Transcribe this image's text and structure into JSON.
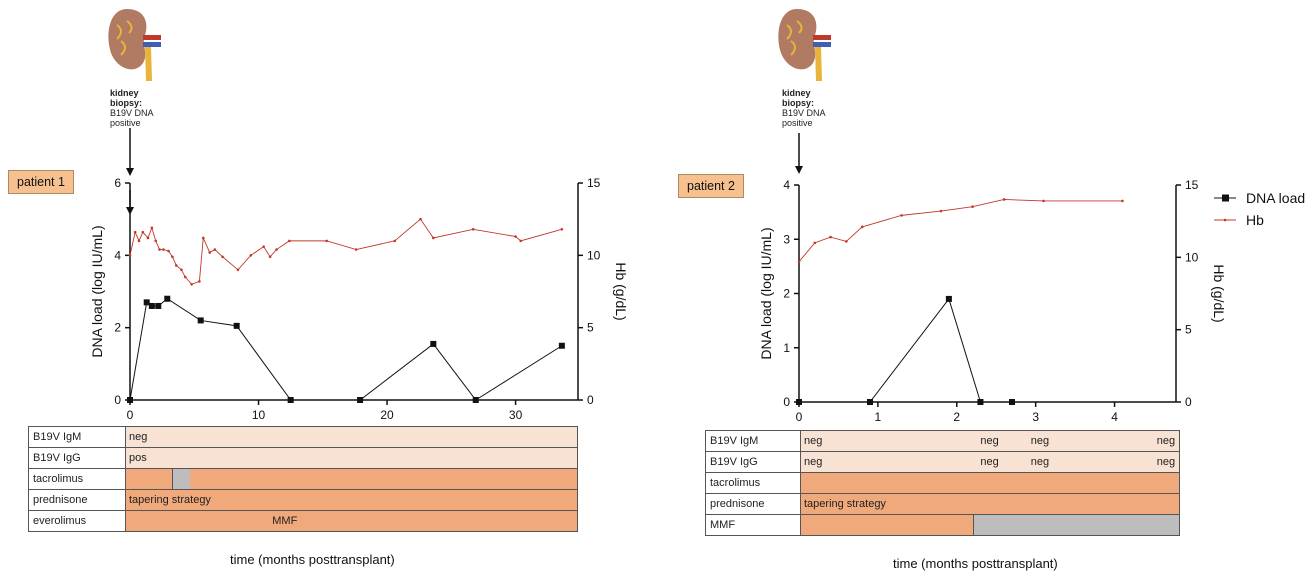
{
  "colors": {
    "dna": "#111111",
    "hb": "#c0392b",
    "light": "#f8e2d3",
    "orange": "#f0a97b",
    "gray": "#bdbdbd",
    "patient_bg": "#f6c08f"
  },
  "panels": [
    {
      "biopsy_bold": "kidney\nbiopsy:",
      "biopsy_text": "B19V DNA\npositive",
      "patient": "patient 1",
      "xtitle": "time (months posttransplant)",
      "rows": [
        {
          "label": "B19V IgM",
          "segments": [
            {
              "start": 0,
              "end": 34,
              "color": "light"
            }
          ],
          "texts": [
            {
              "at": 0,
              "text": "neg"
            }
          ]
        },
        {
          "label": "B19V IgG",
          "segments": [
            {
              "start": 0,
              "end": 34,
              "color": "light"
            }
          ],
          "texts": [
            {
              "at": 0,
              "text": "pos"
            }
          ]
        },
        {
          "label": "tacrolimus",
          "segments": [
            {
              "start": 0,
              "end": 3.5,
              "color": "orange"
            },
            {
              "start": 3.5,
              "end": 4.8,
              "color": "gray"
            },
            {
              "start": 4.8,
              "end": 34,
              "color": "orange"
            }
          ],
          "texts": []
        },
        {
          "label": "prednisone",
          "segments": [
            {
              "start": 0,
              "end": 34,
              "color": "orange"
            }
          ],
          "texts": [
            {
              "at": 0,
              "text": "tapering strategy"
            }
          ]
        },
        {
          "label": "everolimus",
          "segments": [
            {
              "start": 0,
              "end": 34,
              "color": "orange"
            }
          ],
          "texts": [
            {
              "at": 10.8,
              "text": "MMF"
            }
          ]
        }
      ]
    },
    {
      "biopsy_bold": "kidney\nbiopsy:",
      "biopsy_text": "B19V DNA\npositive",
      "patient": "patient 2",
      "xtitle": "time (months posttransplant)",
      "legend": [
        {
          "name": "DNA load",
          "key": "dna"
        },
        {
          "name": "Hb",
          "key": "hb"
        }
      ],
      "rows": [
        {
          "label": "B19V IgM",
          "segments": [
            {
              "start": 0,
              "end": 4.5,
              "color": "light"
            }
          ],
          "texts": [
            {
              "at": 0,
              "text": "neg"
            },
            {
              "at": 2.1,
              "text": "neg"
            },
            {
              "at": 2.7,
              "text": "neg"
            },
            {
              "at": 4.2,
              "text": "neg"
            }
          ]
        },
        {
          "label": "B19V IgG",
          "segments": [
            {
              "start": 0,
              "end": 4.5,
              "color": "light"
            }
          ],
          "texts": [
            {
              "at": 0,
              "text": "neg"
            },
            {
              "at": 2.1,
              "text": "neg"
            },
            {
              "at": 2.7,
              "text": "neg"
            },
            {
              "at": 4.2,
              "text": "neg"
            }
          ]
        },
        {
          "label": "tacrolimus",
          "segments": [
            {
              "start": 0,
              "end": 4.5,
              "color": "orange"
            }
          ],
          "texts": []
        },
        {
          "label": "prednisone",
          "segments": [
            {
              "start": 0,
              "end": 4.5,
              "color": "orange"
            }
          ],
          "texts": [
            {
              "at": 0,
              "text": "tapering strategy"
            }
          ]
        },
        {
          "label": "MMF",
          "segments": [
            {
              "start": 0,
              "end": 2.05,
              "color": "orange"
            },
            {
              "start": 2.05,
              "end": 4.5,
              "color": "gray"
            }
          ],
          "texts": []
        }
      ]
    }
  ],
  "chart_data": [
    {
      "type": "line",
      "ylabel": "DNA load (log IU/mL)",
      "y2label": "Hb (g/dL)",
      "xlim": [
        0,
        34
      ],
      "xticks": [
        0,
        10,
        20,
        30
      ],
      "ylim": [
        0,
        6
      ],
      "yticks": [
        0,
        2,
        4,
        6
      ],
      "y2lim": [
        0,
        15
      ],
      "y2ticks": [
        0,
        5,
        10,
        15
      ],
      "series": [
        {
          "key": "dna",
          "axis": "left",
          "x": [
            0,
            1.3,
            1.7,
            2.2,
            2.9,
            5.5,
            8.3,
            12.5,
            17.9,
            23.6,
            26.9,
            33.6
          ],
          "y": [
            0,
            2.7,
            2.6,
            2.6,
            2.8,
            2.2,
            2.05,
            0,
            0,
            1.55,
            0,
            1.5
          ]
        },
        {
          "key": "hb",
          "axis": "left_on_right",
          "x": [
            0,
            0.4,
            0.7,
            1.0,
            1.4,
            1.7,
            2.0,
            2.3,
            2.6,
            3.0,
            3.3,
            3.6,
            4.0,
            4.3,
            4.8,
            5.4,
            5.7,
            6.2,
            6.6,
            7.2,
            8.4,
            9.4,
            10.4,
            10.9,
            11.4,
            12.4,
            15.3,
            17.6,
            20.6,
            22.6,
            23.6,
            26.7,
            30.0,
            30.4,
            33.6
          ],
          "y": [
            10.0,
            11.6,
            11.0,
            11.6,
            11.2,
            11.9,
            11.0,
            10.4,
            10.4,
            10.3,
            9.9,
            9.3,
            9.0,
            8.5,
            8.0,
            8.2,
            11.2,
            10.2,
            10.4,
            9.9,
            9.0,
            10.0,
            10.6,
            9.9,
            10.4,
            11.0,
            11.0,
            10.4,
            11.0,
            12.5,
            11.2,
            11.8,
            11.3,
            11.0,
            11.8
          ]
        }
      ]
    },
    {
      "type": "line",
      "ylabel": "DNA load (log IU/mL)",
      "y2label": "Hb (g/dL)",
      "xlim": [
        0,
        4.5
      ],
      "xticks": [
        0,
        1,
        2,
        3,
        4
      ],
      "ylim": [
        0,
        4
      ],
      "yticks": [
        0,
        1,
        2,
        3,
        4
      ],
      "y2lim": [
        0,
        15
      ],
      "y2ticks": [
        0,
        5,
        10,
        15
      ],
      "series": [
        {
          "key": "dna",
          "axis": "left",
          "x": [
            0,
            0.9,
            1.9,
            2.3,
            2.7
          ],
          "y": [
            0,
            0,
            1.9,
            0,
            0
          ]
        },
        {
          "key": "hb",
          "axis": "right",
          "x": [
            0,
            0.2,
            0.4,
            0.6,
            0.8,
            1.3,
            1.8,
            2.2,
            2.6,
            3.1,
            4.1
          ],
          "y": [
            9.7,
            11.0,
            11.4,
            11.1,
            12.1,
            12.9,
            13.2,
            13.5,
            14.0,
            13.9,
            13.9
          ]
        }
      ]
    }
  ]
}
